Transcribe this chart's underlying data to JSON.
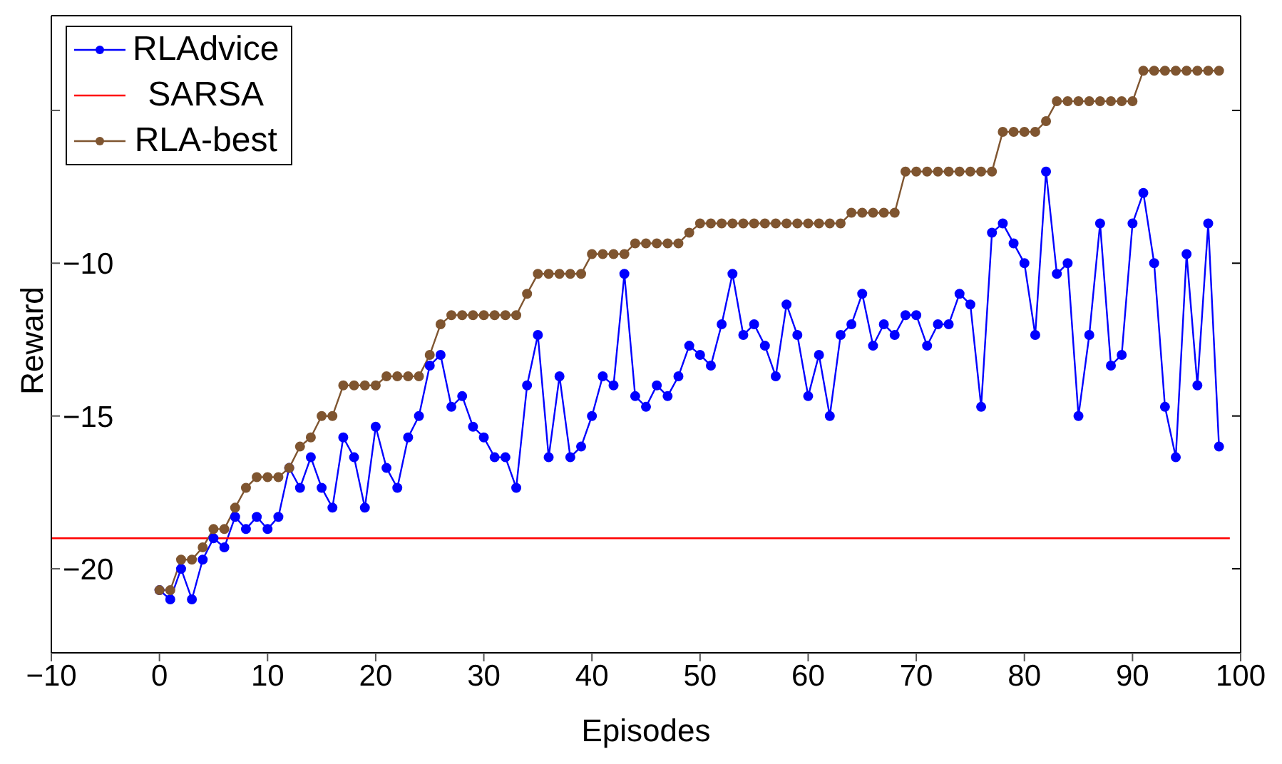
{
  "chart_data": {
    "type": "line",
    "xlabel": "Episodes",
    "ylabel": "Reward",
    "x": [
      0,
      1,
      2,
      3,
      4,
      5,
      6,
      7,
      8,
      9,
      10,
      11,
      12,
      13,
      14,
      15,
      16,
      17,
      18,
      19,
      20,
      21,
      22,
      23,
      24,
      25,
      26,
      27,
      28,
      29,
      30,
      31,
      32,
      33,
      34,
      35,
      36,
      37,
      38,
      39,
      40,
      41,
      42,
      43,
      44,
      45,
      46,
      47,
      48,
      49,
      50,
      51,
      52,
      53,
      54,
      55,
      56,
      57,
      58,
      59,
      60,
      61,
      62,
      63,
      64,
      65,
      66,
      67,
      68,
      69,
      70,
      71,
      72,
      73,
      74,
      75,
      76,
      77,
      78,
      79,
      80,
      81,
      82,
      83,
      84,
      85,
      86,
      87,
      88,
      89,
      90,
      91,
      92,
      93,
      94,
      95,
      96,
      97,
      98
    ],
    "series": [
      {
        "name": "RLAdvice",
        "color": "#0000ff",
        "marker": "circle",
        "values": [
          -20.7,
          -21.0,
          -20.0,
          -21.0,
          -19.7,
          -19.0,
          -19.3,
          -18.3,
          -18.7,
          -18.3,
          -18.7,
          -18.3,
          -16.7,
          -17.35,
          -16.35,
          -17.35,
          -18.0,
          -15.7,
          -16.35,
          -18.0,
          -15.35,
          -16.7,
          -17.35,
          -15.7,
          -15.0,
          -13.35,
          -13.0,
          -14.7,
          -14.35,
          -15.35,
          -15.7,
          -16.35,
          -16.35,
          -17.35,
          -14.0,
          -12.35,
          -16.35,
          -13.7,
          -16.35,
          -16.0,
          -15.0,
          -13.7,
          -14.0,
          -10.35,
          -14.35,
          -14.7,
          -14.0,
          -14.35,
          -13.7,
          -12.7,
          -13.0,
          -13.35,
          -12.0,
          -10.35,
          -12.35,
          -12.0,
          -12.7,
          -13.7,
          -11.35,
          -12.35,
          -14.35,
          -13.0,
          -15.0,
          -12.35,
          -12.0,
          -11.0,
          -12.7,
          -12.0,
          -12.35,
          -11.7,
          -11.7,
          -12.7,
          -12.0,
          -12.0,
          -11.0,
          -11.35,
          -14.7,
          -9.0,
          -8.7,
          -9.35,
          -10.0,
          -12.35,
          -7.0,
          -10.35,
          -10.0,
          -15.0,
          -12.35,
          -8.7,
          -13.35,
          -13.0,
          -8.7,
          -7.7,
          -10.0,
          -14.7,
          -16.35,
          -9.7,
          -14.0,
          -8.7,
          -16.0
        ]
      },
      {
        "name": "SARSA",
        "color": "#ff0000",
        "marker": "none",
        "x": [
          -10,
          99
        ],
        "values": [
          -19.0,
          -19.0
        ]
      },
      {
        "name": "RLA-best",
        "color": "#7f5530",
        "marker": "circle",
        "values": [
          -20.7,
          -20.7,
          -19.7,
          -19.7,
          -19.3,
          -18.7,
          -18.7,
          -18.0,
          -17.35,
          -17.0,
          -17.0,
          -17.0,
          -16.7,
          -16.0,
          -15.7,
          -15.0,
          -15.0,
          -14.0,
          -14.0,
          -14.0,
          -14.0,
          -13.7,
          -13.7,
          -13.7,
          -13.7,
          -13.0,
          -12.0,
          -11.7,
          -11.7,
          -11.7,
          -11.7,
          -11.7,
          -11.7,
          -11.7,
          -11.0,
          -10.35,
          -10.35,
          -10.35,
          -10.35,
          -10.35,
          -9.7,
          -9.7,
          -9.7,
          -9.7,
          -9.35,
          -9.35,
          -9.35,
          -9.35,
          -9.35,
          -9.0,
          -8.7,
          -8.7,
          -8.7,
          -8.7,
          -8.7,
          -8.7,
          -8.7,
          -8.7,
          -8.7,
          -8.7,
          -8.7,
          -8.7,
          -8.7,
          -8.7,
          -8.35,
          -8.35,
          -8.35,
          -8.35,
          -8.35,
          -7.0,
          -7.0,
          -7.0,
          -7.0,
          -7.0,
          -7.0,
          -7.0,
          -7.0,
          -7.0,
          -5.7,
          -5.7,
          -5.7,
          -5.7,
          -5.35,
          -4.7,
          -4.7,
          -4.7,
          -4.7,
          -4.7,
          -4.7,
          -4.7,
          -4.7,
          -3.7,
          -3.7,
          -3.7,
          -3.7,
          -3.7,
          -3.7,
          -3.7,
          -3.7
        ]
      }
    ],
    "xlim": [
      -10,
      100
    ],
    "xticks": [
      -10,
      0,
      10,
      20,
      30,
      40,
      50,
      60,
      70,
      80,
      90,
      100
    ],
    "ylim": [
      -22.75,
      -1.9
    ],
    "yticks": [
      -20,
      -15,
      -10,
      {
        "value": -5,
        "label": null
      }
    ],
    "grid": false,
    "legend": "top left",
    "line_style": "solid"
  }
}
